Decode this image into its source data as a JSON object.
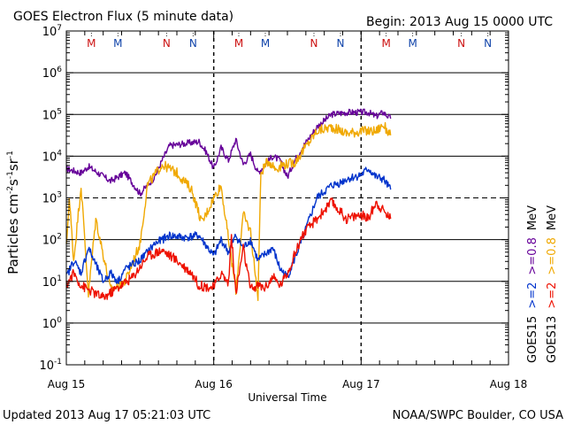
{
  "header": {
    "title": "GOES Electron Flux (5 minute data)",
    "begin": "Begin: 2013 Aug 15 0000 UTC"
  },
  "footer": {
    "updated": "Updated 2013 Aug 17 05:21:03 UTC",
    "credit": "NOAA/SWPC Boulder, CO USA"
  },
  "colors": {
    "goes15_ge2": "#0033cc",
    "goes15_ge08": "#660099",
    "goes13_ge2": "#ee1100",
    "goes13_ge08": "#f0a800",
    "marker_red": "#cc1111",
    "marker_blue": "#1144aa"
  },
  "chart_data": {
    "type": "line",
    "title": "GOES Electron Flux (5 minute data)",
    "xlabel": "Universal Time",
    "ylabel_parts": [
      "Particles cm",
      "-2",
      "s",
      "-1",
      "sr",
      "-1"
    ],
    "y_scale": "log",
    "ylim_exp": [
      -1,
      7
    ],
    "y_ticks": [
      {
        "base": "10",
        "exp": "7"
      },
      {
        "base": "10",
        "exp": "6"
      },
      {
        "base": "10",
        "exp": "5"
      },
      {
        "base": "10",
        "exp": "4"
      },
      {
        "base": "10",
        "exp": "3"
      },
      {
        "base": "10",
        "exp": "2"
      },
      {
        "base": "10",
        "exp": "1"
      },
      {
        "base": "10",
        "exp": "0"
      },
      {
        "base": "10",
        "exp": "-1"
      }
    ],
    "xlim_days": [
      0,
      3
    ],
    "x_ticks": [
      {
        "day": 0,
        "label": "Aug 15"
      },
      {
        "day": 1,
        "label": "Aug 16"
      },
      {
        "day": 2,
        "label": "Aug 17"
      },
      {
        "day": 3,
        "label": "Aug 18"
      }
    ],
    "gridlines_exp": [
      6,
      5,
      4,
      2,
      1,
      0
    ],
    "threshold_exp": 3,
    "markers": [
      {
        "day": 0.17,
        "label": "M",
        "color": "red"
      },
      {
        "day": 0.35,
        "label": "M",
        "color": "blue"
      },
      {
        "day": 0.68,
        "label": "N",
        "color": "red"
      },
      {
        "day": 0.86,
        "label": "N",
        "color": "blue"
      },
      {
        "day": 1.17,
        "label": "M",
        "color": "red"
      },
      {
        "day": 1.35,
        "label": "M",
        "color": "blue"
      },
      {
        "day": 1.68,
        "label": "N",
        "color": "red"
      },
      {
        "day": 1.86,
        "label": "N",
        "color": "blue"
      },
      {
        "day": 2.17,
        "label": "M",
        "color": "red"
      },
      {
        "day": 2.35,
        "label": "M",
        "color": "blue"
      },
      {
        "day": 2.68,
        "label": "N",
        "color": "red"
      },
      {
        "day": 2.86,
        "label": "N",
        "color": "blue"
      }
    ],
    "dashed_days": [
      1.0,
      2.0
    ],
    "legend": {
      "placement": "right",
      "goes15": {
        "name": "GOES15",
        "ge2": ">=2",
        "ge08": ">=0.8",
        "unit": "MeV"
      },
      "goes13": {
        "name": "GOES13",
        "ge2": ">=2",
        "ge08": ">=0.8",
        "unit": "MeV"
      }
    },
    "series": [
      {
        "name": "GOES15 >=0.8 MeV",
        "color_key": "goes15_ge08",
        "noise": 0.08,
        "points": [
          [
            0.0,
            3.7
          ],
          [
            0.1,
            3.6
          ],
          [
            0.15,
            3.75
          ],
          [
            0.3,
            3.4
          ],
          [
            0.4,
            3.6
          ],
          [
            0.5,
            3.1
          ],
          [
            0.6,
            3.5
          ],
          [
            0.65,
            3.9
          ],
          [
            0.7,
            4.25
          ],
          [
            0.8,
            4.3
          ],
          [
            0.9,
            4.35
          ],
          [
            0.95,
            4.1
          ],
          [
            1.0,
            3.7
          ],
          [
            1.05,
            4.2
          ],
          [
            1.1,
            3.9
          ],
          [
            1.15,
            4.4
          ],
          [
            1.2,
            3.8
          ],
          [
            1.25,
            4.05
          ],
          [
            1.3,
            3.6
          ],
          [
            1.4,
            4.0
          ],
          [
            1.45,
            3.9
          ],
          [
            1.5,
            3.5
          ],
          [
            1.55,
            3.9
          ],
          [
            1.6,
            4.2
          ],
          [
            1.7,
            4.7
          ],
          [
            1.8,
            5.0
          ],
          [
            1.9,
            5.05
          ],
          [
            2.0,
            5.05
          ],
          [
            2.05,
            5.05
          ],
          [
            2.1,
            4.95
          ],
          [
            2.15,
            5.05
          ],
          [
            2.2,
            4.9
          ]
        ]
      },
      {
        "name": "GOES13 >=0.8 MeV",
        "color_key": "goes13_ge08",
        "noise": 0.12,
        "points": [
          [
            0.0,
            1.8
          ],
          [
            0.02,
            3.0
          ],
          [
            0.05,
            1.5
          ],
          [
            0.1,
            3.3
          ],
          [
            0.15,
            0.7
          ],
          [
            0.2,
            2.5
          ],
          [
            0.3,
            0.8
          ],
          [
            0.4,
            1.0
          ],
          [
            0.5,
            1.9
          ],
          [
            0.55,
            3.3
          ],
          [
            0.65,
            3.8
          ],
          [
            0.75,
            3.6
          ],
          [
            0.85,
            3.2
          ],
          [
            0.92,
            2.4
          ],
          [
            1.0,
            3.0
          ],
          [
            1.05,
            3.3
          ],
          [
            1.1,
            2.0
          ],
          [
            1.15,
            0.8
          ],
          [
            1.2,
            2.6
          ],
          [
            1.25,
            2.2
          ],
          [
            1.3,
            0.6
          ],
          [
            1.32,
            3.6
          ],
          [
            1.37,
            3.9
          ],
          [
            1.42,
            3.7
          ],
          [
            1.47,
            3.8
          ],
          [
            1.55,
            3.85
          ],
          [
            1.6,
            4.1
          ],
          [
            1.7,
            4.6
          ],
          [
            1.8,
            4.7
          ],
          [
            1.9,
            4.55
          ],
          [
            2.0,
            4.6
          ],
          [
            2.1,
            4.6
          ],
          [
            2.15,
            4.75
          ],
          [
            2.2,
            4.5
          ]
        ]
      },
      {
        "name": "GOES15 >=2 MeV",
        "color_key": "goes15_ge2",
        "noise": 0.1,
        "points": [
          [
            0.0,
            1.1
          ],
          [
            0.05,
            1.5
          ],
          [
            0.1,
            1.2
          ],
          [
            0.15,
            1.8
          ],
          [
            0.2,
            1.4
          ],
          [
            0.25,
            1.0
          ],
          [
            0.3,
            1.2
          ],
          [
            0.35,
            1.0
          ],
          [
            0.4,
            1.3
          ],
          [
            0.5,
            1.5
          ],
          [
            0.6,
            1.9
          ],
          [
            0.7,
            2.1
          ],
          [
            0.8,
            2.05
          ],
          [
            0.9,
            2.1
          ],
          [
            1.0,
            1.6
          ],
          [
            1.05,
            2.0
          ],
          [
            1.1,
            1.7
          ],
          [
            1.15,
            2.1
          ],
          [
            1.2,
            1.8
          ],
          [
            1.25,
            2.0
          ],
          [
            1.3,
            1.5
          ],
          [
            1.4,
            1.8
          ],
          [
            1.45,
            1.3
          ],
          [
            1.5,
            1.1
          ],
          [
            1.6,
            2.0
          ],
          [
            1.7,
            3.0
          ],
          [
            1.8,
            3.3
          ],
          [
            1.85,
            3.35
          ],
          [
            1.9,
            3.45
          ],
          [
            2.0,
            3.55
          ],
          [
            2.05,
            3.7
          ],
          [
            2.1,
            3.5
          ],
          [
            2.15,
            3.45
          ],
          [
            2.2,
            3.2
          ]
        ]
      },
      {
        "name": "GOES13 >=2 MeV",
        "color_key": "goes13_ge2",
        "noise": 0.12,
        "points": [
          [
            0.0,
            0.9
          ],
          [
            0.05,
            1.2
          ],
          [
            0.1,
            0.9
          ],
          [
            0.15,
            0.8
          ],
          [
            0.25,
            0.6
          ],
          [
            0.35,
            0.85
          ],
          [
            0.45,
            1.1
          ],
          [
            0.55,
            1.6
          ],
          [
            0.65,
            1.75
          ],
          [
            0.75,
            1.5
          ],
          [
            0.85,
            1.2
          ],
          [
            0.9,
            0.9
          ],
          [
            1.0,
            0.85
          ],
          [
            1.05,
            1.2
          ],
          [
            1.1,
            0.95
          ],
          [
            1.12,
            2.1
          ],
          [
            1.15,
            0.7
          ],
          [
            1.2,
            1.8
          ],
          [
            1.25,
            0.8
          ],
          [
            1.3,
            0.9
          ],
          [
            1.35,
            0.85
          ],
          [
            1.4,
            1.1
          ],
          [
            1.45,
            0.9
          ],
          [
            1.5,
            1.2
          ],
          [
            1.6,
            2.1
          ],
          [
            1.7,
            2.5
          ],
          [
            1.8,
            2.9
          ],
          [
            1.85,
            2.7
          ],
          [
            1.9,
            2.5
          ],
          [
            2.0,
            2.6
          ],
          [
            2.05,
            2.5
          ],
          [
            2.1,
            2.9
          ],
          [
            2.15,
            2.7
          ],
          [
            2.2,
            2.5
          ]
        ]
      }
    ]
  }
}
